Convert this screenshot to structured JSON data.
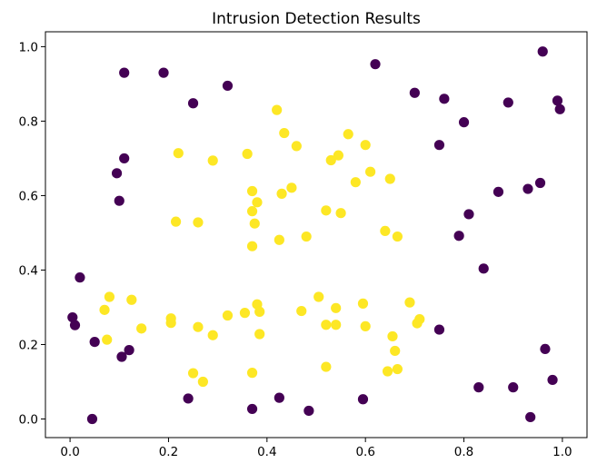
{
  "chart_data": {
    "type": "scatter",
    "title": "Intrusion Detection Results",
    "xlabel": "",
    "ylabel": "",
    "xlim": [
      -0.05,
      1.05
    ],
    "ylim": [
      -0.05,
      1.04
    ],
    "xticks": [
      "0.0",
      "0.2",
      "0.4",
      "0.6",
      "0.8",
      "1.0"
    ],
    "yticks": [
      "0.0",
      "0.2",
      "0.4",
      "0.6",
      "0.8",
      "1.0"
    ],
    "grid": false,
    "legend": "none",
    "colors": {
      "class_0": "#440154",
      "class_1": "#fde725"
    },
    "series": [
      {
        "class": 0,
        "points": [
          [
            0.11,
            0.93
          ],
          [
            0.19,
            0.93
          ],
          [
            0.32,
            0.895
          ],
          [
            0.25,
            0.848
          ],
          [
            0.62,
            0.953
          ],
          [
            0.96,
            0.987
          ],
          [
            0.7,
            0.876
          ],
          [
            0.76,
            0.86
          ],
          [
            0.8,
            0.797
          ],
          [
            0.89,
            0.85
          ],
          [
            0.99,
            0.855
          ],
          [
            0.995,
            0.832
          ],
          [
            0.75,
            0.736
          ],
          [
            0.11,
            0.7
          ],
          [
            0.095,
            0.66
          ],
          [
            0.1,
            0.586
          ],
          [
            0.87,
            0.61
          ],
          [
            0.93,
            0.618
          ],
          [
            0.955,
            0.634
          ],
          [
            0.81,
            0.55
          ],
          [
            0.79,
            0.492
          ],
          [
            0.84,
            0.404
          ],
          [
            0.02,
            0.38
          ],
          [
            0.005,
            0.273
          ],
          [
            0.01,
            0.252
          ],
          [
            0.05,
            0.207
          ],
          [
            0.12,
            0.185
          ],
          [
            0.105,
            0.167
          ],
          [
            0.75,
            0.24
          ],
          [
            0.965,
            0.188
          ],
          [
            0.98,
            0.105
          ],
          [
            0.83,
            0.085
          ],
          [
            0.9,
            0.085
          ],
          [
            0.24,
            0.055
          ],
          [
            0.425,
            0.057
          ],
          [
            0.595,
            0.053
          ],
          [
            0.37,
            0.027
          ],
          [
            0.485,
            0.022
          ],
          [
            0.045,
            0.0
          ],
          [
            0.935,
            0.005
          ]
        ]
      },
      {
        "class": 1,
        "points": [
          [
            0.42,
            0.83
          ],
          [
            0.435,
            0.768
          ],
          [
            0.46,
            0.733
          ],
          [
            0.22,
            0.714
          ],
          [
            0.29,
            0.694
          ],
          [
            0.36,
            0.712
          ],
          [
            0.53,
            0.695
          ],
          [
            0.545,
            0.708
          ],
          [
            0.565,
            0.765
          ],
          [
            0.6,
            0.736
          ],
          [
            0.61,
            0.664
          ],
          [
            0.58,
            0.636
          ],
          [
            0.65,
            0.645
          ],
          [
            0.37,
            0.612
          ],
          [
            0.38,
            0.582
          ],
          [
            0.43,
            0.605
          ],
          [
            0.45,
            0.621
          ],
          [
            0.37,
            0.558
          ],
          [
            0.375,
            0.525
          ],
          [
            0.215,
            0.53
          ],
          [
            0.26,
            0.528
          ],
          [
            0.52,
            0.56
          ],
          [
            0.55,
            0.553
          ],
          [
            0.64,
            0.505
          ],
          [
            0.665,
            0.49
          ],
          [
            0.48,
            0.49
          ],
          [
            0.425,
            0.481
          ],
          [
            0.37,
            0.464
          ],
          [
            0.08,
            0.328
          ],
          [
            0.125,
            0.32
          ],
          [
            0.07,
            0.293
          ],
          [
            0.205,
            0.27
          ],
          [
            0.205,
            0.258
          ],
          [
            0.38,
            0.308
          ],
          [
            0.385,
            0.288
          ],
          [
            0.355,
            0.285
          ],
          [
            0.32,
            0.278
          ],
          [
            0.505,
            0.328
          ],
          [
            0.47,
            0.29
          ],
          [
            0.54,
            0.298
          ],
          [
            0.595,
            0.31
          ],
          [
            0.69,
            0.313
          ],
          [
            0.71,
            0.268
          ],
          [
            0.705,
            0.257
          ],
          [
            0.52,
            0.253
          ],
          [
            0.54,
            0.253
          ],
          [
            0.6,
            0.249
          ],
          [
            0.145,
            0.243
          ],
          [
            0.26,
            0.247
          ],
          [
            0.385,
            0.228
          ],
          [
            0.29,
            0.225
          ],
          [
            0.075,
            0.213
          ],
          [
            0.655,
            0.222
          ],
          [
            0.66,
            0.183
          ],
          [
            0.52,
            0.14
          ],
          [
            0.645,
            0.128
          ],
          [
            0.665,
            0.134
          ],
          [
            0.25,
            0.123
          ],
          [
            0.37,
            0.124
          ],
          [
            0.27,
            0.1
          ]
        ]
      }
    ]
  }
}
